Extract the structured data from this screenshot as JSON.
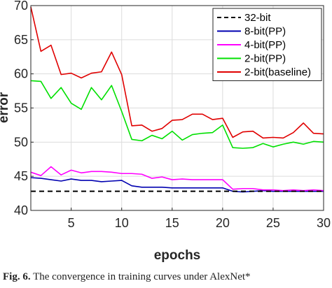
{
  "chart_data": {
    "type": "line",
    "xlabel": "epochs",
    "ylabel": "error",
    "xlim": [
      1,
      30
    ],
    "ylim": [
      40,
      70
    ],
    "xticks": [
      5,
      10,
      15,
      20,
      25,
      30
    ],
    "yticks": [
      40,
      45,
      50,
      55,
      60,
      65,
      70
    ],
    "grid": true,
    "legend_position": "top-right",
    "series": [
      {
        "name": "32-bit",
        "color": "#000000",
        "style": "dashed",
        "x": [
          1,
          30
        ],
        "y": [
          42.8,
          42.8
        ]
      },
      {
        "name": "8-bit(PP)",
        "color": "#0000b0",
        "style": "solid",
        "x": [
          1,
          2,
          3,
          4,
          5,
          6,
          7,
          8,
          9,
          10,
          11,
          12,
          13,
          14,
          15,
          16,
          17,
          18,
          19,
          20,
          21,
          22,
          23,
          24,
          25,
          26,
          27,
          28,
          29,
          30
        ],
        "y": [
          44.8,
          44.7,
          44.5,
          44.3,
          44.6,
          44.4,
          44.4,
          44.2,
          44.3,
          44.4,
          43.6,
          43.4,
          43.4,
          43.4,
          43.3,
          43.3,
          43.3,
          43.3,
          43.3,
          43.3,
          42.8,
          42.7,
          42.8,
          42.9,
          42.8,
          42.8,
          42.8,
          42.8,
          42.8,
          42.8
        ]
      },
      {
        "name": "4-bit(PP)",
        "color": "#ff00ff",
        "style": "solid",
        "x": [
          1,
          2,
          3,
          4,
          5,
          6,
          7,
          8,
          9,
          10,
          11,
          12,
          13,
          14,
          15,
          16,
          17,
          18,
          19,
          20,
          21,
          22,
          23,
          24,
          25,
          26,
          27,
          28,
          29,
          30
        ],
        "y": [
          45.6,
          45.1,
          46.4,
          45.2,
          45.9,
          45.5,
          45.7,
          45.7,
          45.6,
          45.4,
          45.4,
          45.3,
          44.7,
          44.9,
          44.5,
          44.6,
          44.5,
          44.5,
          44.5,
          44.5,
          43.1,
          43.2,
          43.2,
          43.0,
          43.0,
          42.9,
          43.0,
          42.9,
          43.0,
          42.9
        ]
      },
      {
        "name": "2-bit(PP)",
        "color": "#00e000",
        "style": "solid",
        "x": [
          1,
          2,
          3,
          4,
          5,
          6,
          7,
          8,
          9,
          10,
          11,
          12,
          13,
          14,
          15,
          16,
          17,
          18,
          19,
          20,
          21,
          22,
          23,
          24,
          25,
          26,
          27,
          28,
          29,
          30
        ],
        "y": [
          59.0,
          58.9,
          56.4,
          58.0,
          55.7,
          54.8,
          58.0,
          56.2,
          58.3,
          54.5,
          50.4,
          50.2,
          51.0,
          50.5,
          51.6,
          50.3,
          51.1,
          51.3,
          51.4,
          52.5,
          49.2,
          49.1,
          49.2,
          49.8,
          49.3,
          49.7,
          50.0,
          49.7,
          50.1,
          50.0
        ]
      },
      {
        "name": "2-bit(baseline)",
        "color": "#e00000",
        "style": "solid",
        "x": [
          1,
          2,
          3,
          4,
          5,
          6,
          7,
          8,
          9,
          10,
          11,
          12,
          13,
          14,
          15,
          16,
          17,
          18,
          19,
          20,
          21,
          22,
          23,
          24,
          25,
          26,
          27,
          28,
          29,
          30
        ],
        "y": [
          69.8,
          63.3,
          64.2,
          59.9,
          60.1,
          59.4,
          60.1,
          60.3,
          63.2,
          59.9,
          52.4,
          52.5,
          51.6,
          52.0,
          53.2,
          53.3,
          54.1,
          54.1,
          53.3,
          53.5,
          50.7,
          51.5,
          51.6,
          50.6,
          50.7,
          50.6,
          51.4,
          52.8,
          51.3,
          51.2
        ]
      }
    ]
  },
  "caption": {
    "label": "Fig. 6.",
    "text": "The convergence in training curves under AlexNet*"
  }
}
